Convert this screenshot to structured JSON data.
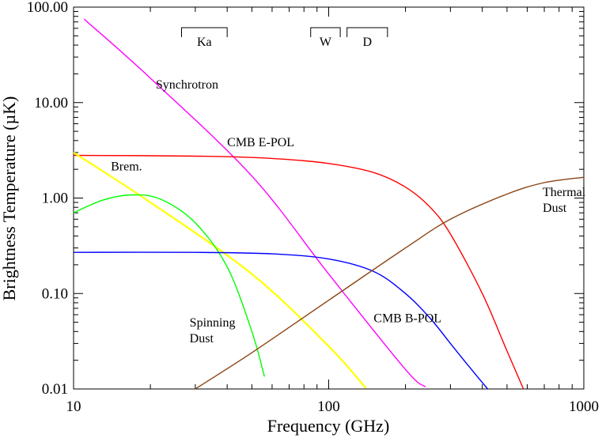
{
  "chart_data": {
    "type": "line",
    "title": "",
    "xlabel": "Frequency (GHz)",
    "ylabel": "Brightness Temperature (µK)",
    "xscale": "log",
    "yscale": "log",
    "xlim": [
      10,
      1000
    ],
    "ylim": [
      0.01,
      100
    ],
    "x_ticks": [
      {
        "value": 10,
        "label": "10"
      },
      {
        "value": 100,
        "label": "100"
      },
      {
        "value": 1000,
        "label": "1000"
      }
    ],
    "y_ticks": [
      {
        "value": 0.01,
        "label": "0.01"
      },
      {
        "value": 0.1,
        "label": "0.10"
      },
      {
        "value": 1,
        "label": "1.00"
      },
      {
        "value": 10,
        "label": "10.00"
      },
      {
        "value": 100,
        "label": "100.00"
      }
    ],
    "grid": false,
    "bands": [
      {
        "label": "Ka",
        "x": [
          26.5,
          40
        ]
      },
      {
        "label": "W",
        "x": [
          85,
          111
        ]
      },
      {
        "label": "D",
        "x": [
          118,
          170
        ]
      }
    ],
    "series": [
      {
        "name": "Synchrotron",
        "color": "#ff00ff",
        "label_at": [
          21,
          14
        ],
        "points": [
          [
            11,
            75
          ],
          [
            20,
            18
          ],
          [
            50,
            1.7
          ],
          [
            100,
            0.16
          ],
          [
            200,
            0.016
          ],
          [
            240,
            0.0105
          ]
        ]
      },
      {
        "name": "CMB E-POL",
        "color": "#ff0000",
        "label_at": [
          40,
          3.5
        ],
        "points": [
          [
            10,
            2.8
          ],
          [
            30,
            2.75
          ],
          [
            60,
            2.6
          ],
          [
            100,
            2.3
          ],
          [
            150,
            1.85
          ],
          [
            200,
            1.3
          ],
          [
            250,
            0.8
          ],
          [
            300,
            0.42
          ],
          [
            400,
            0.1
          ],
          [
            500,
            0.025
          ],
          [
            580,
            0.01
          ]
        ]
      },
      {
        "name": "Brem.",
        "color": "#ffff00",
        "label_at": [
          14,
          1.95
        ],
        "points": [
          [
            10,
            3.0
          ],
          [
            20,
            0.9
          ],
          [
            50,
            0.16
          ],
          [
            100,
            0.028
          ],
          [
            140,
            0.0102
          ]
        ]
      },
      {
        "name": "Spinning Dust",
        "color": "#00ff00",
        "label_at": [
          28.5,
          0.045
        ],
        "points": [
          [
            10,
            0.7
          ],
          [
            13,
            0.95
          ],
          [
            17,
            1.08
          ],
          [
            22,
            0.97
          ],
          [
            30,
            0.55
          ],
          [
            40,
            0.19
          ],
          [
            50,
            0.04
          ],
          [
            56,
            0.0135
          ]
        ]
      },
      {
        "name": "CMB B-POL",
        "color": "#0000ff",
        "label_at": [
          150,
          0.05
        ],
        "points": [
          [
            10,
            0.27
          ],
          [
            30,
            0.27
          ],
          [
            60,
            0.26
          ],
          [
            100,
            0.23
          ],
          [
            150,
            0.17
          ],
          [
            200,
            0.1
          ],
          [
            250,
            0.055
          ],
          [
            300,
            0.03
          ],
          [
            350,
            0.018
          ],
          [
            420,
            0.01
          ]
        ]
      },
      {
        "name": "Thermal Dust",
        "color": "#8b4513",
        "label_at": [
          690,
          1.05
        ],
        "points": [
          [
            30,
            0.01
          ],
          [
            50,
            0.024
          ],
          [
            100,
            0.085
          ],
          [
            200,
            0.3
          ],
          [
            300,
            0.6
          ],
          [
            500,
            1.1
          ],
          [
            700,
            1.45
          ],
          [
            1000,
            1.65
          ]
        ]
      }
    ]
  }
}
